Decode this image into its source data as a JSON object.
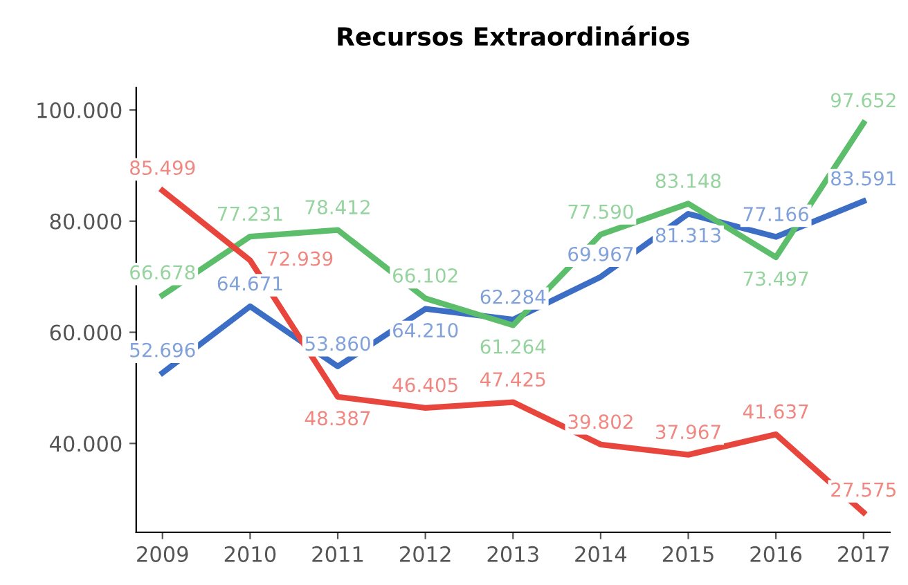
{
  "chart_data": {
    "type": "line",
    "title": "Recursos Extraordinários",
    "categories": [
      "2009",
      "2010",
      "2011",
      "2012",
      "2013",
      "2014",
      "2015",
      "2016",
      "2017"
    ],
    "series": [
      {
        "color": "#3b6ec4",
        "values": [
          52696,
          64671,
          53860,
          64210,
          62284,
          69967,
          81313,
          77166,
          83591
        ],
        "value_labels": [
          "52.696",
          "64.671",
          "53.860",
          "64.210",
          "62.284",
          "69.967",
          "81.313",
          "77.166",
          "83.591"
        ]
      },
      {
        "color": "#5cbd6a",
        "values": [
          66678,
          77231,
          78412,
          66102,
          61264,
          77590,
          83148,
          73497,
          97652
        ],
        "value_labels": [
          "66.678",
          "77.231",
          "78.412",
          "66.102",
          "61.264",
          "77.590",
          "83.148",
          "73.497",
          "97.652"
        ]
      },
      {
        "color": "#e8463c",
        "values": [
          85499,
          72939,
          48387,
          46405,
          47425,
          39802,
          37967,
          41637,
          27575
        ],
        "value_labels": [
          "85.499",
          "72.939",
          "48.387",
          "46.405",
          "47.425",
          "39.802",
          "37.967",
          "41.637",
          "27.575"
        ]
      }
    ],
    "ylim": [
      24000,
      104000
    ],
    "yticks": [
      {
        "value": 40000,
        "label": "40.000"
      },
      {
        "value": 60000,
        "label": "60.000"
      },
      {
        "value": 80000,
        "label": "80.000"
      },
      {
        "value": 100000,
        "label": "100.000"
      }
    ],
    "grid": false,
    "legend": false,
    "marker": "none",
    "line_style": "solid"
  }
}
